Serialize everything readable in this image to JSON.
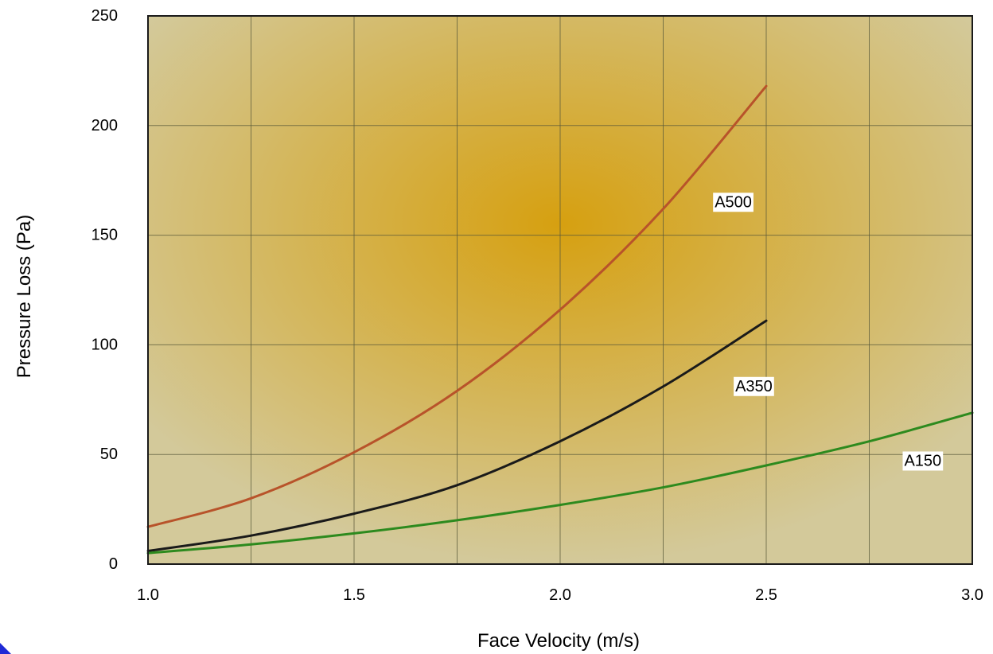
{
  "chart_data": {
    "type": "line",
    "title": "",
    "xlabel": "Face Velocity (m/s)",
    "ylabel": "Pressure Loss (Pa)",
    "xlim": [
      1.0,
      3.0
    ],
    "ylim": [
      0,
      250
    ],
    "x_ticks": [
      1.0,
      1.5,
      2.0,
      2.5,
      3.0
    ],
    "x_tick_labels": [
      "1.0",
      "1.5",
      "2.0",
      "2.5",
      "3.0"
    ],
    "y_ticks": [
      0,
      50,
      100,
      150,
      200,
      250
    ],
    "y_tick_labels": [
      "0",
      "50",
      "100",
      "150",
      "200",
      "250"
    ],
    "x_grid": [
      1.0,
      1.25,
      1.5,
      1.75,
      2.0,
      2.25,
      2.5,
      2.75,
      3.0
    ],
    "y_grid": [
      0,
      50,
      100,
      150,
      200,
      250
    ],
    "grid": true,
    "background": {
      "center": "#d6a010",
      "edge": "#d3c99a"
    },
    "series": [
      {
        "name": "A500",
        "color": "#b8532a",
        "x": [
          1.0,
          1.25,
          1.5,
          1.75,
          2.0,
          2.25,
          2.5
        ],
        "y": [
          17,
          30,
          51,
          79,
          116,
          162,
          218
        ],
        "label_at": [
          2.42,
          165
        ]
      },
      {
        "name": "A350",
        "color": "#1a1a1a",
        "x": [
          1.0,
          1.25,
          1.5,
          1.75,
          2.0,
          2.25,
          2.5
        ],
        "y": [
          6,
          13,
          23,
          36,
          56,
          81,
          111
        ],
        "label_at": [
          2.47,
          81
        ]
      },
      {
        "name": "A150",
        "color": "#2d8a1e",
        "x": [
          1.0,
          1.25,
          1.5,
          1.75,
          2.0,
          2.25,
          2.5,
          2.75,
          3.0
        ],
        "y": [
          5,
          9,
          14,
          20,
          27,
          35,
          45,
          56,
          69
        ],
        "label_at": [
          2.88,
          47
        ]
      }
    ]
  }
}
